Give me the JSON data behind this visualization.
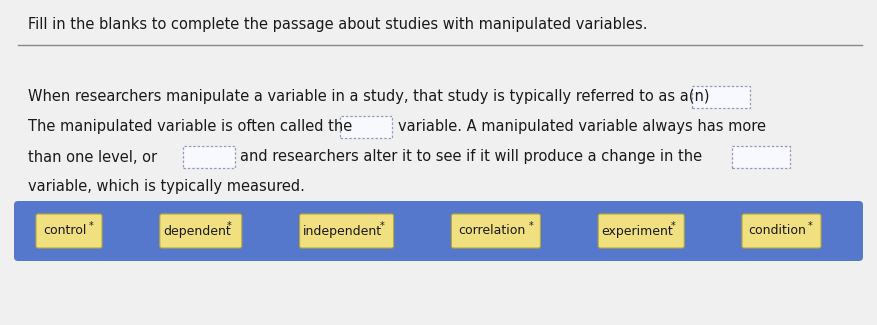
{
  "title": "Fill in the blanks to complete the passage about studies with manipulated variables.",
  "title_fontsize": 10.5,
  "title_color": "#1a1a1a",
  "background_color": "#f0f0f0",
  "content_bg": "#f0f0f0",
  "title_bg": "#f0f0f0",
  "line1": "When researchers manipulate a variable in a study, that study is typically referred to as a(n)",
  "line2_a": "The manipulated variable is often called the",
  "line2_b": "variable. A manipulated variable always has more",
  "line3_a": "than one level, or",
  "line3_b": "and researchers alter it to see if it will produce a change in the",
  "line4": "variable, which is typically measured.",
  "blank_border": "#9999bb",
  "blank_bg": "#f8f8ff",
  "word_buttons": [
    "control",
    "dependent",
    "independent",
    "correlation",
    "experiment",
    "condition"
  ],
  "button_bg": "#f0e080",
  "button_border": "#b8a830",
  "bottom_bar_color": "#5577cc",
  "text_color": "#1a1a1a",
  "text_fontsize": 10.5,
  "separator_color": "#888888"
}
